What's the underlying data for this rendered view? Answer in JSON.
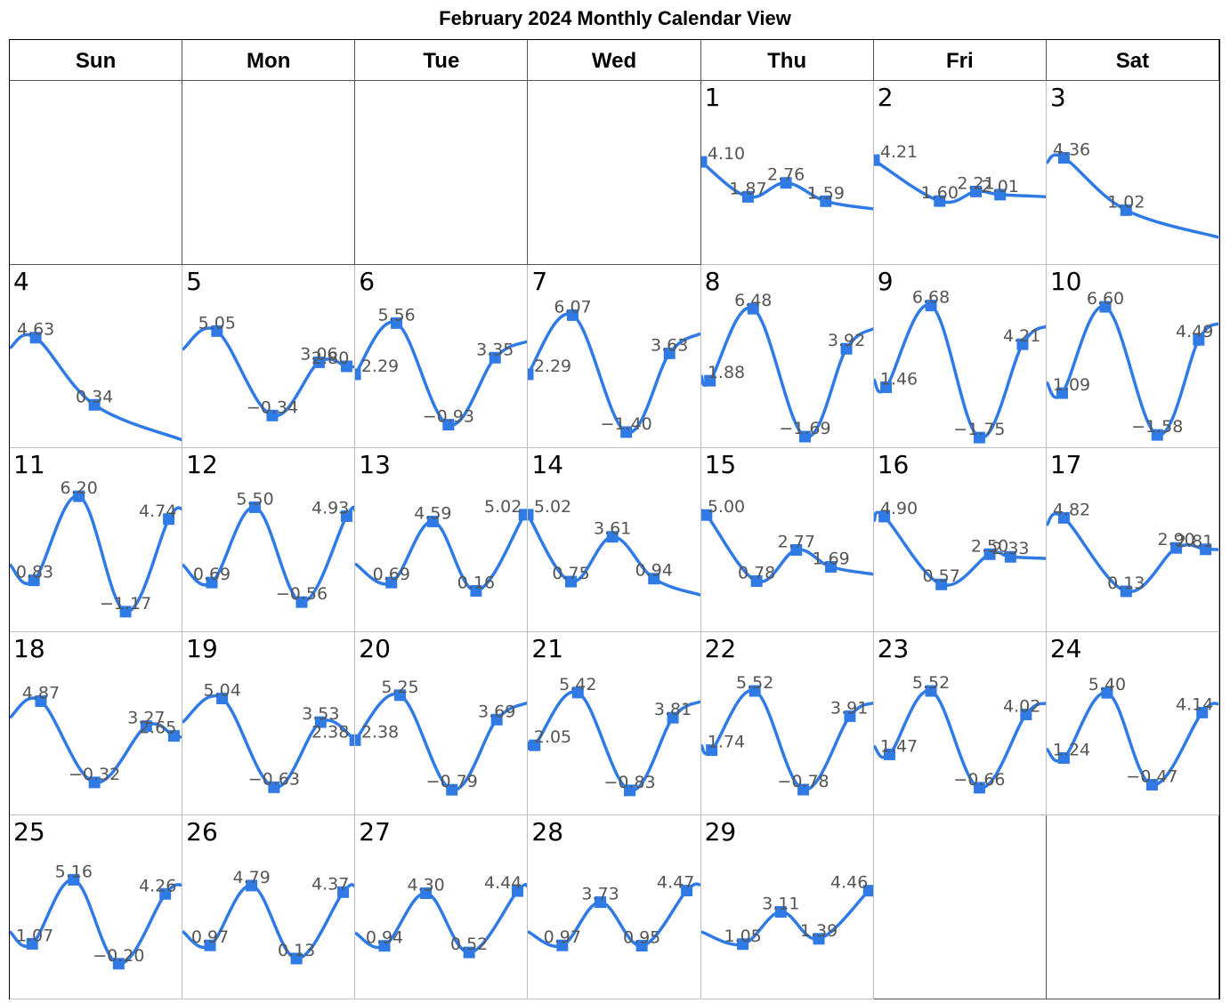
{
  "title": "February 2024 Monthly Calendar View",
  "weekdays": [
    "Sun",
    "Mon",
    "Tue",
    "Wed",
    "Thu",
    "Fri",
    "Sat"
  ],
  "colors": {
    "line": "#2f7ae5",
    "marker": "#2f7ae5",
    "label": "#555555"
  },
  "chart_data": {
    "type": "line",
    "title": "February 2024 Monthly Calendar View",
    "ylim": [
      -2,
      7
    ],
    "first_weekday": 4,
    "days": [
      {
        "day": 1,
        "x": [
          0.0,
          0.27,
          0.49,
          0.72
        ],
        "y": [
          4.1,
          1.87,
          2.76,
          1.59
        ]
      },
      {
        "day": 2,
        "x": [
          0.0,
          0.38,
          0.59,
          0.73
        ],
        "y": [
          4.21,
          1.6,
          2.21,
          2.01
        ]
      },
      {
        "day": 3,
        "x": [
          0.1,
          0.46
        ],
        "y": [
          4.36,
          1.02
        ]
      },
      {
        "day": 4,
        "x": [
          0.15,
          0.49
        ],
        "y": [
          4.63,
          0.34
        ]
      },
      {
        "day": 5,
        "x": [
          0.2,
          0.52,
          0.79,
          0.95
        ],
        "y": [
          5.05,
          -0.34,
          3.06,
          2.8
        ]
      },
      {
        "day": 6,
        "x": [
          0.0,
          0.24,
          0.54,
          0.81
        ],
        "y": [
          2.29,
          5.56,
          -0.93,
          3.35
        ]
      },
      {
        "day": 7,
        "x": [
          0.0,
          0.26,
          0.57,
          0.82
        ],
        "y": [
          2.29,
          6.07,
          -1.4,
          3.63
        ]
      },
      {
        "day": 8,
        "x": [
          0.05,
          0.3,
          0.6,
          0.84
        ],
        "y": [
          1.88,
          6.48,
          -1.69,
          3.92
        ]
      },
      {
        "day": 9,
        "x": [
          0.07,
          0.33,
          0.61,
          0.86
        ],
        "y": [
          1.46,
          6.68,
          -1.75,
          4.21
        ]
      },
      {
        "day": 10,
        "x": [
          0.09,
          0.34,
          0.64,
          0.88
        ],
        "y": [
          1.09,
          6.6,
          -1.58,
          4.49
        ]
      },
      {
        "day": 11,
        "x": [
          0.14,
          0.4,
          0.67,
          0.92
        ],
        "y": [
          0.83,
          6.2,
          -1.17,
          4.74
        ]
      },
      {
        "day": 12,
        "x": [
          0.17,
          0.42,
          0.69,
          0.95
        ],
        "y": [
          0.69,
          5.5,
          -0.56,
          4.93
        ]
      },
      {
        "day": 13,
        "x": [
          0.21,
          0.45,
          0.7,
          0.98
        ],
        "y": [
          0.69,
          4.59,
          0.16,
          5.02
        ]
      },
      {
        "day": 14,
        "x": [
          0.0,
          0.25,
          0.49,
          0.73
        ],
        "y": [
          5.02,
          0.75,
          3.61,
          0.94
        ]
      },
      {
        "day": 15,
        "x": [
          0.03,
          0.32,
          0.55,
          0.75
        ],
        "y": [
          5.0,
          0.78,
          2.77,
          1.69
        ]
      },
      {
        "day": 16,
        "x": [
          0.06,
          0.39,
          0.67,
          0.79
        ],
        "y": [
          4.9,
          0.57,
          2.5,
          2.33
        ]
      },
      {
        "day": 17,
        "x": [
          0.1,
          0.46,
          0.75,
          0.92
        ],
        "y": [
          4.82,
          0.13,
          2.9,
          2.81
        ]
      },
      {
        "day": 18,
        "x": [
          0.18,
          0.49,
          0.79,
          0.95
        ],
        "y": [
          4.87,
          -0.32,
          3.27,
          2.65
        ]
      },
      {
        "day": 19,
        "x": [
          0.23,
          0.53,
          0.8,
          1.0
        ],
        "y": [
          5.04,
          -0.63,
          3.53,
          2.38
        ]
      },
      {
        "day": 20,
        "x": [
          0.0,
          0.26,
          0.56,
          0.82
        ],
        "y": [
          2.38,
          5.25,
          -0.79,
          3.69
        ]
      },
      {
        "day": 21,
        "x": [
          0.04,
          0.29,
          0.59,
          0.84
        ],
        "y": [
          2.05,
          5.42,
          -0.83,
          3.81
        ]
      },
      {
        "day": 22,
        "x": [
          0.06,
          0.31,
          0.59,
          0.86
        ],
        "y": [
          1.74,
          5.52,
          -0.78,
          3.91
        ]
      },
      {
        "day": 23,
        "x": [
          0.09,
          0.33,
          0.61,
          0.88
        ],
        "y": [
          1.47,
          5.52,
          -0.66,
          4.02
        ]
      },
      {
        "day": 24,
        "x": [
          0.1,
          0.35,
          0.61,
          0.9
        ],
        "y": [
          1.24,
          5.4,
          -0.47,
          4.14
        ]
      },
      {
        "day": 25,
        "x": [
          0.13,
          0.37,
          0.63,
          0.9
        ],
        "y": [
          1.07,
          5.16,
          -0.2,
          4.26
        ]
      },
      {
        "day": 26,
        "x": [
          0.16,
          0.4,
          0.66,
          0.93
        ],
        "y": [
          0.97,
          4.79,
          0.13,
          4.37
        ]
      },
      {
        "day": 27,
        "x": [
          0.17,
          0.41,
          0.66,
          0.94
        ],
        "y": [
          0.94,
          4.3,
          0.52,
          4.44
        ]
      },
      {
        "day": 28,
        "x": [
          0.2,
          0.42,
          0.66,
          0.92
        ],
        "y": [
          0.97,
          3.73,
          0.95,
          4.47
        ]
      },
      {
        "day": 29,
        "x": [
          0.24,
          0.46,
          0.68,
          0.97
        ],
        "y": [
          1.05,
          3.11,
          1.39,
          4.46
        ]
      }
    ]
  }
}
